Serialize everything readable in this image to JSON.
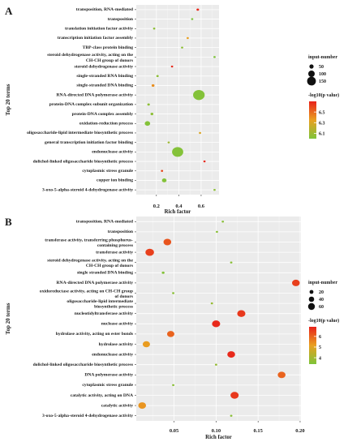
{
  "chart_data": [
    {
      "panel_letter": "A",
      "type": "scatter",
      "xlabel": "Rich factor",
      "ylabel": "Top 20 terms",
      "xlim": [
        0.02,
        0.76
      ],
      "xticks": [
        0.2,
        0.4,
        0.6
      ],
      "xtick_labels": [
        "0.2",
        "0.4",
        "0.6"
      ],
      "size_legend": {
        "title": "input-number",
        "values": [
          50,
          100,
          150
        ]
      },
      "color_legend": {
        "title": "-log10(p value)",
        "ticks": [
          6.5,
          6.3,
          6.1
        ],
        "min": 6.0,
        "max": 6.7
      },
      "grid": true,
      "terms": [
        {
          "label": "transposition, RNA-mediated",
          "x": 0.57,
          "size": 8,
          "color": 6.68
        },
        {
          "label": "transposition",
          "x": 0.52,
          "size": 6,
          "color": 6.0
        },
        {
          "label": "translation initiation factor activity",
          "x": 0.18,
          "size": 6,
          "color": 6.05
        },
        {
          "label": "transcription initiation factor assembly",
          "x": 0.48,
          "size": 5,
          "color": 6.35
        },
        {
          "label": "TBP-class protein binding",
          "x": 0.43,
          "size": 5,
          "color": 6.05
        },
        {
          "label": "steroid dehydrogenase activity, acting on the CH-CH group of donors",
          "x": 0.72,
          "size": 5,
          "color": 6.0
        },
        {
          "label": "steroid dehydrogenase activity",
          "x": 0.34,
          "size": 5,
          "color": 6.68
        },
        {
          "label": "single-stranded RNA binding",
          "x": 0.21,
          "size": 7,
          "color": 6.05
        },
        {
          "label": "single-stranded DNA binding",
          "x": 0.17,
          "size": 10,
          "color": 6.4
        },
        {
          "label": "RNA-directed DNA polymerase activity",
          "x": 0.58,
          "size": 160,
          "color": 6.02
        },
        {
          "label": "protein-DNA complex subunit organization",
          "x": 0.13,
          "size": 8,
          "color": 6.05
        },
        {
          "label": "protein-DNA complex assembly",
          "x": 0.16,
          "size": 10,
          "color": 6.05
        },
        {
          "label": "oxidation-reduction process",
          "x": 0.12,
          "size": 35,
          "color": 6.02
        },
        {
          "label": "oligosaccharide-lipid intermediate biosynthetic process",
          "x": 0.59,
          "size": 6,
          "color": 6.3
        },
        {
          "label": "general transcription initiation factor binding",
          "x": 0.31,
          "size": 5,
          "color": 6.1
        },
        {
          "label": "endonuclease activity",
          "x": 0.39,
          "size": 150,
          "color": 6.02
        },
        {
          "label": "dolichol-linked oligosaccharide biosynthetic process",
          "x": 0.63,
          "size": 6,
          "color": 6.68
        },
        {
          "label": "cytoplasmic stress granule",
          "x": 0.25,
          "size": 6,
          "color": 6.6
        },
        {
          "label": "copper ion binding",
          "x": 0.27,
          "size": 25,
          "color": 6.02
        },
        {
          "label": "3-oxo-5-alpha-steroid 4-dehydrogenase activity",
          "x": 0.72,
          "size": 5,
          "color": 6.05
        }
      ]
    },
    {
      "panel_letter": "B",
      "type": "scatter",
      "xlabel": "Rich factor",
      "ylabel": "Top 20 terms",
      "xlim": [
        0.005,
        0.201
      ],
      "xticks": [
        0.05,
        0.1,
        0.15,
        0.2
      ],
      "xtick_labels": [
        "0.05",
        "0.10",
        "0.15",
        "0.20"
      ],
      "size_legend": {
        "title": "input-number",
        "values": [
          20,
          40,
          60
        ]
      },
      "color_legend": {
        "title": "-log10(p value)",
        "ticks": [
          6,
          5,
          4
        ],
        "min": 3.4,
        "max": 6.9
      },
      "grid": true,
      "terms": [
        {
          "label": "transposition, RNA-mediated",
          "x": 0.108,
          "size": 4,
          "color": 3.6
        },
        {
          "label": "transposition",
          "x": 0.101,
          "size": 4,
          "color": 3.6
        },
        {
          "label": "transferase activity, transferring phosphorus-containing groups",
          "x": 0.042,
          "size": 45,
          "color": 6.2
        },
        {
          "label": "transferase activity",
          "x": 0.021,
          "size": 55,
          "color": 6.5
        },
        {
          "label": "steroid dehydrogenase activity, acting on the CH-CH group of donors",
          "x": 0.118,
          "size": 3,
          "color": 3.6
        },
        {
          "label": "single stranded DNA binding",
          "x": 0.037,
          "size": 6,
          "color": 3.5
        },
        {
          "label": "RNA-directed DNA polymerase activity",
          "x": 0.195,
          "size": 45,
          "color": 6.5
        },
        {
          "label": "oxidoreductase activity, acting on CH-CH group of donors",
          "x": 0.049,
          "size": 4,
          "color": 3.6
        },
        {
          "label": "oligosaccharide-lipid intermediate biosynthetic process",
          "x": 0.095,
          "size": 3,
          "color": 3.8
        },
        {
          "label": "nucleotidyltransferase activity",
          "x": 0.13,
          "size": 50,
          "color": 6.6
        },
        {
          "label": "nuclease activity",
          "x": 0.1,
          "size": 50,
          "color": 6.8
        },
        {
          "label": "hydrolase activity, acting on ester bonds",
          "x": 0.046,
          "size": 40,
          "color": 6.0
        },
        {
          "label": "hydrolase activity",
          "x": 0.017,
          "size": 40,
          "color": 5.2
        },
        {
          "label": "endonuclease activity",
          "x": 0.118,
          "size": 45,
          "color": 6.8
        },
        {
          "label": "dolichol-linked oligosaccharide biosynthetic process",
          "x": 0.1,
          "size": 3,
          "color": 3.8
        },
        {
          "label": "DNA polymerase activity",
          "x": 0.178,
          "size": 45,
          "color": 6.0
        },
        {
          "label": "cytoplasmic stress granule",
          "x": 0.049,
          "size": 4,
          "color": 3.6
        },
        {
          "label": "catalytic activity, acting on DNA",
          "x": 0.122,
          "size": 50,
          "color": 6.6
        },
        {
          "label": "catalytic activity",
          "x": 0.012,
          "size": 45,
          "color": 5.3
        },
        {
          "label": "3-oxo-5-alpha-steroid 4-dehydrogenase activity",
          "x": 0.118,
          "size": 3,
          "color": 3.6
        }
      ]
    }
  ]
}
